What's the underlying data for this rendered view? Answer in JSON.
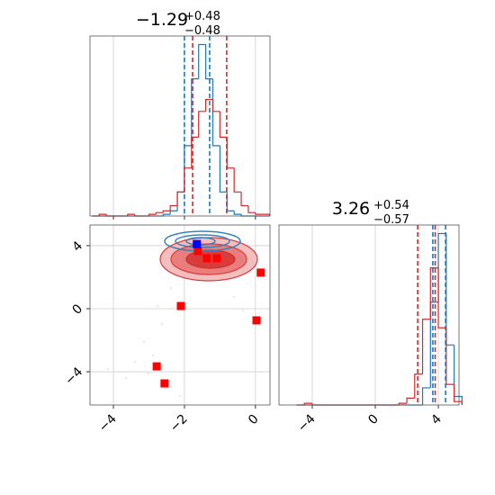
{
  "chart_data": [
    {
      "type": "histogram",
      "title_value": "−1.29",
      "title_plus": "+0.48",
      "title_minus": "−0.48",
      "bins": [
        -4.6,
        -4.4,
        -4.2,
        -4.0,
        -3.8,
        -3.6,
        -3.4,
        -3.2,
        -3.0,
        -2.8,
        -2.6,
        -2.4,
        -2.2,
        -2.0,
        -1.8,
        -1.6,
        -1.4,
        -1.2,
        -1.0,
        -0.8,
        -0.6,
        -0.4,
        -0.2,
        0.0,
        0.2,
        0.4
      ],
      "series": [
        {
          "name": "blue",
          "color": "#1f77b4",
          "values": [
            0,
            0,
            0,
            0,
            0,
            0,
            0,
            0,
            0,
            0,
            1,
            3,
            14,
            41,
            80,
            100,
            80,
            41,
            14,
            3,
            1,
            0,
            0,
            0,
            0
          ],
          "lines": [
            -2.0,
            -1.29
          ]
        },
        {
          "name": "red",
          "color": "#d62728",
          "values": [
            0,
            1,
            0,
            0,
            0,
            1,
            0,
            0,
            1,
            2,
            3,
            6,
            14,
            28,
            46,
            61,
            68,
            61,
            46,
            28,
            14,
            6,
            2,
            1,
            1
          ],
          "lines": [
            -1.77,
            -0.81
          ]
        }
      ],
      "xlim": [
        -4.66,
        0.41
      ],
      "ylim": [
        0,
        105
      ],
      "xticks": [
        -4,
        -2,
        0
      ],
      "grid": true
    },
    {
      "type": "scatter",
      "series": [
        {
          "name": "red",
          "color": "#ff0000",
          "x": [
            -1.62,
            -1.37,
            -1.09,
            0.15,
            -2.1,
            0.03,
            -2.78,
            -2.56
          ],
          "values": [
            3.66,
            3.2,
            3.2,
            2.29,
            0.17,
            -0.74,
            -3.66,
            -4.74
          ]
        },
        {
          "name": "blue",
          "color": "#0000ff",
          "x": [
            -1.65
          ],
          "values": [
            4.1
          ]
        }
      ],
      "xlim": [
        -4.66,
        0.41
      ],
      "ylim": [
        -6.11,
        5.31
      ],
      "xticks": [
        {
          "value": -4,
          "label": "−4"
        },
        {
          "value": -2,
          "label": "−2"
        },
        0
      ],
      "yticks": [
        {
          "value": -4,
          "label": "−4"
        },
        0,
        4
      ],
      "grid": true
    },
    {
      "type": "histogram",
      "title_value": "3.26",
      "title_plus": "+0.54",
      "title_minus": "−0.57",
      "bins": [
        -5.0,
        -4.5,
        -4.0,
        -3.5,
        -3.0,
        -2.5,
        -2.0,
        -1.5,
        -1.0,
        -0.5,
        0.0,
        0.5,
        1.0,
        1.5,
        2.0,
        2.5,
        3.0,
        3.5,
        4.0,
        4.5,
        5.0,
        5.5
      ],
      "series": [
        {
          "name": "blue",
          "color": "#1f77b4",
          "values": [
            0,
            0,
            0,
            0,
            0,
            0,
            0,
            0,
            0,
            0,
            0,
            0,
            0,
            0,
            0,
            0,
            10,
            60,
            100,
            35,
            5
          ],
          "lines": [
            3.65,
            4.46
          ]
        },
        {
          "name": "red",
          "color": "#d62728",
          "values": [
            0,
            1,
            0,
            0,
            0,
            0,
            0,
            0,
            0,
            0,
            0,
            0,
            0,
            1,
            4,
            18,
            50,
            80,
            45,
            12,
            2
          ],
          "lines": [
            2.69,
            3.8
          ]
        }
      ],
      "xlim": [
        -6.11,
        5.31
      ],
      "ylim": [
        0,
        105
      ],
      "xticks": [
        {
          "value": -4,
          "label": "−4"
        },
        0,
        4
      ],
      "grid": true
    }
  ]
}
